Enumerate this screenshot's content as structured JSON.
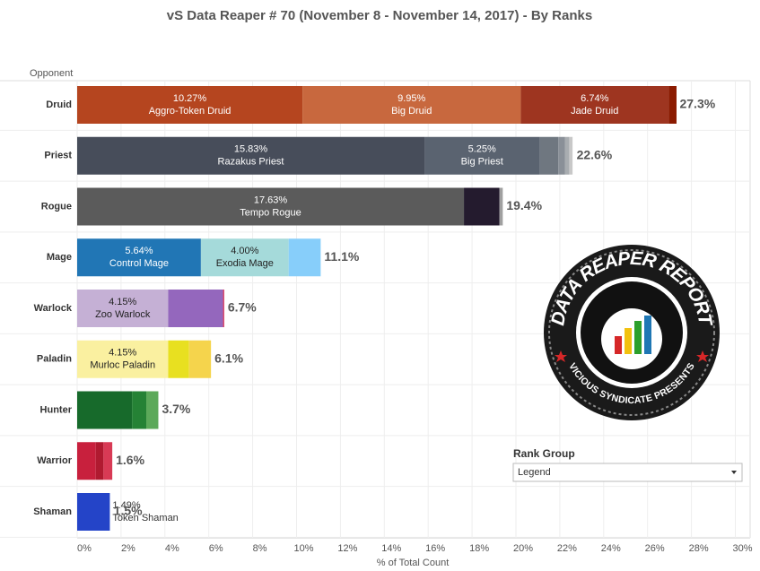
{
  "chart_data": {
    "type": "stacked_bar",
    "title": "vS Data Reaper #  70 (November 8 - November 14, 2017) - By Ranks",
    "y_header": "Opponent",
    "xlabel": "% of Total Count",
    "categories": [
      "Druid",
      "Priest",
      "Rogue",
      "Mage",
      "Warlock",
      "Paladin",
      "Hunter",
      "Warrior",
      "Shaman"
    ],
    "bars": [
      {
        "total": 27.3,
        "total_label": "27.3%",
        "segments": [
          {
            "value": 10.27,
            "value_label": "10.27%",
            "name": "Aggro-Token Druid",
            "color": "#b5451f"
          },
          {
            "value": 9.95,
            "value_label": "9.95%",
            "name": "Big Druid",
            "color": "#c8683e"
          },
          {
            "value": 6.74,
            "value_label": "6.74%",
            "name": "Jade Druid",
            "color": "#9e3520"
          },
          {
            "value": 0.36,
            "color": "#8b1a00"
          }
        ]
      },
      {
        "total": 22.6,
        "total_label": "22.6%",
        "segments": [
          {
            "value": 15.83,
            "value_label": "15.83%",
            "name": "Razakus Priest",
            "color": "#474d5a"
          },
          {
            "value": 5.25,
            "value_label": "5.25%",
            "name": "Big Priest",
            "color": "#5a6370"
          },
          {
            "value": 0.85,
            "color": "#6f7780"
          },
          {
            "value": 0.3,
            "color": "#8a9098"
          },
          {
            "value": 0.2,
            "color": "#a9adb1"
          },
          {
            "value": 0.15,
            "color": "#c8c8c8"
          }
        ]
      },
      {
        "total": 19.4,
        "total_label": "19.4%",
        "segments": [
          {
            "value": 17.63,
            "value_label": "17.63%",
            "name": "Tempo Rogue",
            "color": "#5b5b5b"
          },
          {
            "value": 1.62,
            "color": "#241b2e"
          },
          {
            "value": 0.15,
            "color": "#a0a0a0"
          }
        ]
      },
      {
        "total": 11.1,
        "total_label": "11.1%",
        "segments": [
          {
            "value": 5.64,
            "value_label": "5.64%",
            "name": "Control Mage",
            "color": "#2176b5"
          },
          {
            "value": 4.0,
            "value_label": "4.00%",
            "name": "Exodia Mage",
            "color": "#a5dada"
          },
          {
            "value": 1.46,
            "color": "#87cefa"
          }
        ]
      },
      {
        "total": 6.7,
        "total_label": "6.7%",
        "segments": [
          {
            "value": 4.15,
            "value_label": "4.15%",
            "name": "Zoo Warlock",
            "color": "#c5b0d5"
          },
          {
            "value": 2.5,
            "color": "#9467bd"
          },
          {
            "value": 0.05,
            "color": "#d6274e"
          }
        ]
      },
      {
        "total": 6.1,
        "total_label": "6.1%",
        "segments": [
          {
            "value": 4.15,
            "value_label": "4.15%",
            "name": "Murloc Paladin",
            "color": "#faf0a0"
          },
          {
            "value": 0.95,
            "color": "#e8e020"
          },
          {
            "value": 1.0,
            "color": "#f5d44c"
          }
        ]
      },
      {
        "total": 3.7,
        "total_label": "3.7%",
        "segments": [
          {
            "value": 2.5,
            "color": "#176a2b"
          },
          {
            "value": 0.65,
            "color": "#258235"
          },
          {
            "value": 0.55,
            "color": "#5ca95a"
          }
        ]
      },
      {
        "total": 1.6,
        "total_label": "1.6%",
        "segments": [
          {
            "value": 0.85,
            "color": "#c8203d"
          },
          {
            "value": 0.35,
            "color": "#b01a30"
          },
          {
            "value": 0.4,
            "color": "#d83a55"
          }
        ]
      },
      {
        "total": 1.5,
        "total_label": "1.5%",
        "segments": [
          {
            "value": 1.49,
            "value_label": "1.49%",
            "name": "Token Shaman",
            "color": "#2444c8"
          }
        ]
      }
    ],
    "xlim": [
      0,
      30
    ],
    "xticks": [
      {
        "value": 0,
        "label": "0%"
      },
      {
        "value": 2,
        "label": "2%"
      },
      {
        "value": 4,
        "label": "4%"
      },
      {
        "value": 6,
        "label": "6%"
      },
      {
        "value": 8,
        "label": "8%"
      },
      {
        "value": 10,
        "label": "10%"
      },
      {
        "value": 12,
        "label": "12%"
      },
      {
        "value": 14,
        "label": "14%"
      },
      {
        "value": 16,
        "label": "16%"
      },
      {
        "value": 18,
        "label": "18%"
      },
      {
        "value": 20,
        "label": "20%"
      },
      {
        "value": 22,
        "label": "22%"
      },
      {
        "value": 24,
        "label": "24%"
      },
      {
        "value": 26,
        "label": "26%"
      },
      {
        "value": 28,
        "label": "28%"
      },
      {
        "value": 30,
        "label": "30%"
      }
    ],
    "grid": true
  },
  "filter": {
    "title": "Rank Group",
    "selected": "Legend"
  },
  "logo": {
    "title": "DATA REAPER REPORT",
    "subtitle": "VICIOUS SYNDICATE PRESENTS"
  }
}
